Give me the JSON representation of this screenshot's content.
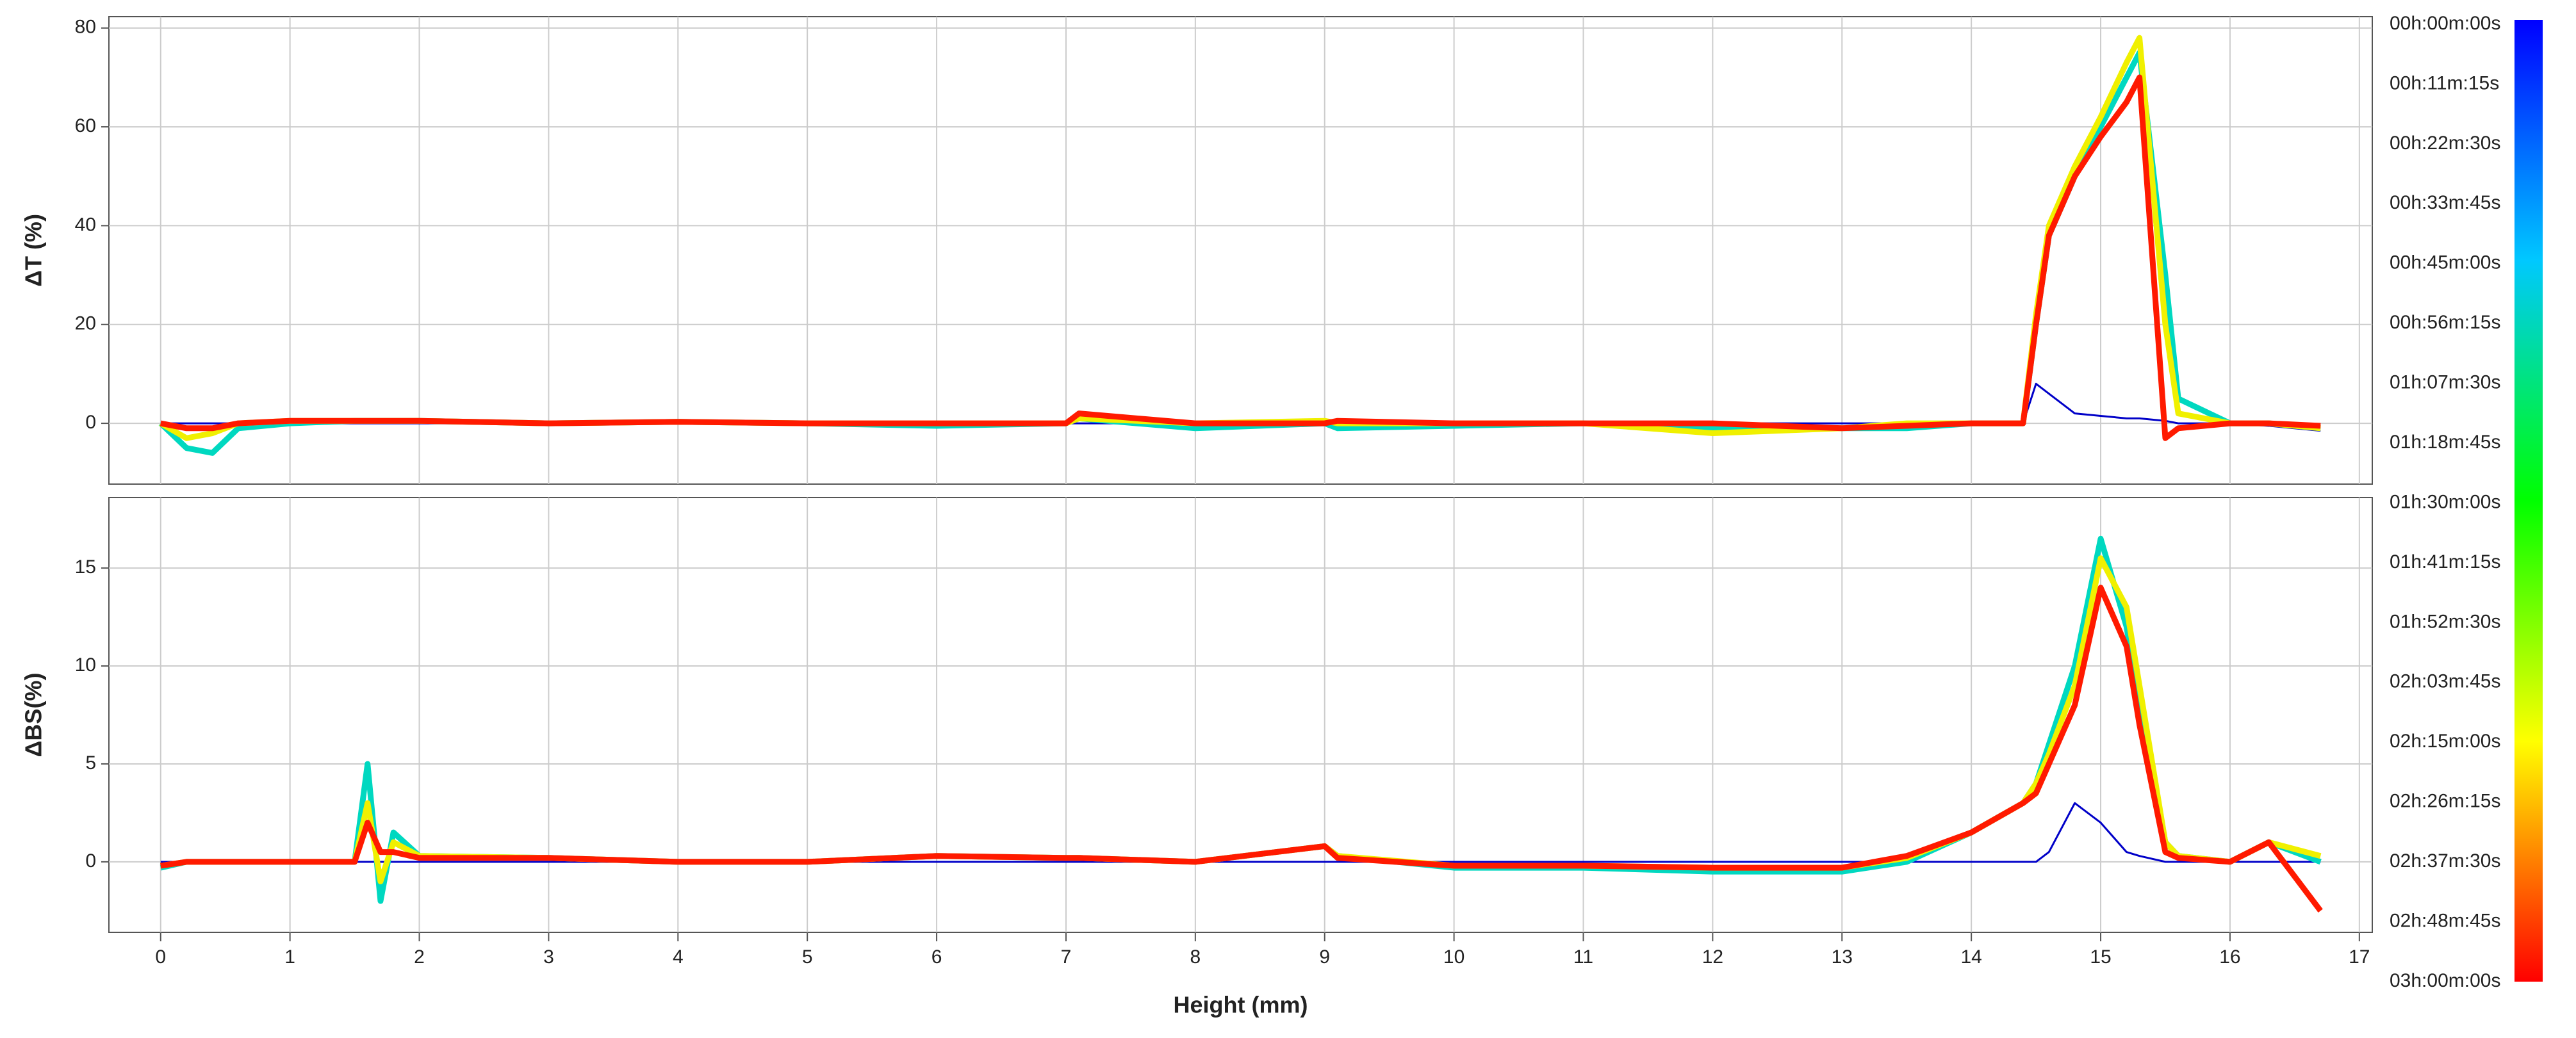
{
  "chart_data": [
    {
      "type": "line",
      "ylabel": "ΔT (%)",
      "x": [
        0,
        0.2,
        0.4,
        0.6,
        1,
        1.5,
        1.6,
        1.7,
        1.8,
        2,
        3,
        4,
        5,
        6,
        7,
        7.1,
        8,
        9,
        9.1,
        10,
        11,
        12,
        13,
        13.5,
        14,
        14.4,
        14.5,
        14.6,
        14.8,
        15,
        15.2,
        15.3,
        15.5,
        15.6,
        16,
        16.3,
        16.7
      ],
      "xlim": [
        -0.4,
        17.1
      ],
      "xticks": [
        0,
        1,
        2,
        3,
        4,
        5,
        6,
        7,
        8,
        9,
        10,
        11,
        12,
        13,
        14,
        15,
        16,
        17
      ],
      "ylim": [
        -12.3,
        82.3
      ],
      "yticks": [
        0,
        20,
        40,
        60,
        80
      ],
      "grid": true,
      "series": [
        {
          "color": "#0000c8",
          "values": [
            0,
            0,
            0,
            0,
            0,
            0,
            0,
            0,
            0,
            0,
            0,
            0,
            0,
            0,
            0,
            0,
            0,
            0,
            0,
            0,
            0,
            0,
            0,
            0,
            0,
            0,
            8,
            6,
            2,
            1.5,
            1,
            1,
            0.5,
            0,
            0,
            -0.5,
            -1.5
          ]
        },
        {
          "color": "#00d8c0",
          "values": [
            0,
            -5,
            -6,
            -1,
            0,
            0.5,
            0.5,
            0.5,
            0.5,
            0.5,
            0,
            0.3,
            0,
            -0.5,
            0,
            1,
            -1,
            0,
            -1,
            -0.5,
            0,
            -1,
            -1,
            -1,
            0,
            0,
            20,
            38,
            50,
            60,
            70,
            75,
            30,
            5,
            0,
            0,
            -1
          ]
        },
        {
          "color": "#f0f000",
          "values": [
            0,
            -3,
            -2,
            0,
            0.5,
            0.5,
            0.5,
            0.5,
            0.5,
            0.5,
            0,
            0.3,
            0,
            0,
            0,
            1,
            0,
            0.5,
            0,
            0,
            0,
            -2,
            -1,
            0,
            0,
            0,
            22,
            40,
            52,
            62,
            73,
            78,
            20,
            2,
            0,
            0,
            -1
          ]
        },
        {
          "color": "#ff1a00",
          "values": [
            0,
            -1,
            -1,
            0,
            0.5,
            0.5,
            0.5,
            0.5,
            0.5,
            0.5,
            0,
            0.3,
            0,
            0,
            0,
            2,
            0,
            0,
            0.5,
            0,
            0,
            0,
            -1,
            -0.5,
            0,
            0,
            20,
            38,
            50,
            58,
            65,
            70,
            -3,
            -1,
            0,
            0,
            -0.5
          ]
        }
      ]
    },
    {
      "type": "line",
      "ylabel": "ΔBS(%)",
      "xlabel": "Height (mm)",
      "x": [
        0,
        0.2,
        0.4,
        0.6,
        1,
        1.5,
        1.6,
        1.7,
        1.8,
        2,
        3,
        4,
        5,
        6,
        7,
        7.1,
        8,
        9,
        9.1,
        10,
        11,
        12,
        13,
        13.5,
        14,
        14.4,
        14.5,
        14.6,
        14.8,
        15,
        15.2,
        15.3,
        15.5,
        15.6,
        16,
        16.3,
        16.7
      ],
      "xlim": [
        -0.4,
        17.1
      ],
      "xticks": [
        0,
        1,
        2,
        3,
        4,
        5,
        6,
        7,
        8,
        9,
        10,
        11,
        12,
        13,
        14,
        15,
        16,
        17
      ],
      "ylim": [
        -3.6,
        18.6
      ],
      "yticks": [
        0,
        5,
        10,
        15
      ],
      "grid": true,
      "series": [
        {
          "color": "#0000c8",
          "values": [
            0,
            0,
            0,
            0,
            0,
            0,
            0,
            0,
            0,
            0,
            0,
            0,
            0,
            0,
            0,
            0,
            0,
            0,
            0,
            0,
            0,
            0,
            0,
            0,
            0,
            0,
            0,
            0.5,
            3,
            2,
            0.5,
            0.3,
            0,
            0,
            0,
            0,
            0
          ]
        },
        {
          "color": "#00d8c0",
          "values": [
            -0.3,
            0,
            0,
            0,
            0,
            0,
            5,
            -2,
            1.5,
            0.3,
            0.2,
            0,
            0,
            0.3,
            0.2,
            0.2,
            0,
            0.8,
            0.3,
            -0.3,
            -0.3,
            -0.5,
            -0.5,
            0,
            1.5,
            3,
            4,
            6,
            10,
            16.5,
            12,
            8,
            1,
            0.3,
            0,
            1,
            0
          ]
        },
        {
          "color": "#f0f000",
          "values": [
            -0.2,
            0,
            0,
            0,
            0,
            0,
            3,
            -1,
            1,
            0.3,
            0.2,
            0,
            0,
            0.3,
            0.2,
            0.2,
            0,
            0.8,
            0.3,
            -0.2,
            -0.2,
            -0.3,
            -0.3,
            0.2,
            1.5,
            3,
            4,
            5.5,
            9,
            15.5,
            13,
            9,
            1,
            0.3,
            0,
            1,
            0.3
          ]
        },
        {
          "color": "#ff1a00",
          "values": [
            -0.2,
            0,
            0,
            0,
            0,
            0,
            2,
            0.5,
            0.5,
            0.2,
            0.2,
            0,
            0,
            0.3,
            0.2,
            0.2,
            0,
            0.8,
            0.2,
            -0.2,
            -0.2,
            -0.3,
            -0.3,
            0.3,
            1.5,
            3,
            3.5,
            5,
            8,
            14,
            11,
            7,
            0.5,
            0.2,
            0,
            1,
            -2.5
          ]
        }
      ]
    },
    {
      "type": "colorbar",
      "labels": [
        "00h:00m:00s",
        "00h:11m:15s",
        "00h:22m:30s",
        "00h:33m:45s",
        "00h:45m:00s",
        "00h:56m:15s",
        "01h:07m:30s",
        "01h:18m:45s",
        "01h:30m:00s",
        "01h:41m:15s",
        "01h:52m:30s",
        "02h:03m:45s",
        "02h:15m:00s",
        "02h:26m:15s",
        "02h:37m:30s",
        "02h:48m:45s",
        "03h:00m:00s"
      ],
      "colors": [
        "#0000ff",
        "#00c8ff",
        "#00ff00",
        "#ffff00",
        "#ff0000"
      ]
    }
  ]
}
